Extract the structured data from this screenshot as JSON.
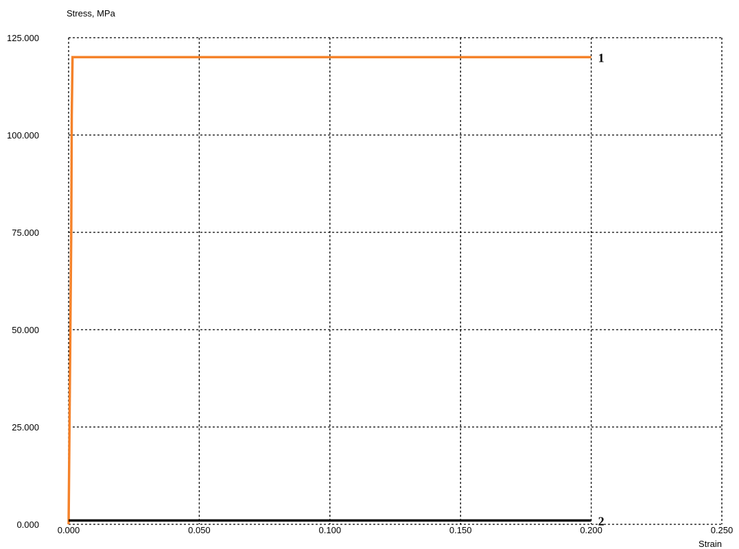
{
  "chart_data": {
    "type": "line",
    "ylabel": "Stress, MPa",
    "xlabel": "Strain",
    "xlim": [
      0,
      0.25
    ],
    "ylim": [
      0,
      125
    ],
    "x_ticks": [
      "0.000",
      "0.050",
      "0.100",
      "0.150",
      "0.200",
      "0.250"
    ],
    "y_ticks": [
      "0.000",
      "25.000",
      "50.000",
      "75.000",
      "100.000",
      "125.000"
    ],
    "grid": true,
    "series": [
      {
        "name": "1",
        "color": "#f5822a",
        "points": [
          [
            0,
            0
          ],
          [
            0.0002,
            15
          ],
          [
            0.0006,
            45
          ],
          [
            0.001,
            75
          ],
          [
            0.0012,
            105
          ],
          [
            0.0015,
            120
          ],
          [
            0.2,
            120
          ]
        ]
      },
      {
        "name": "2",
        "color": "#000000",
        "points": [
          [
            0,
            1
          ],
          [
            0.2,
            1
          ]
        ]
      }
    ]
  }
}
